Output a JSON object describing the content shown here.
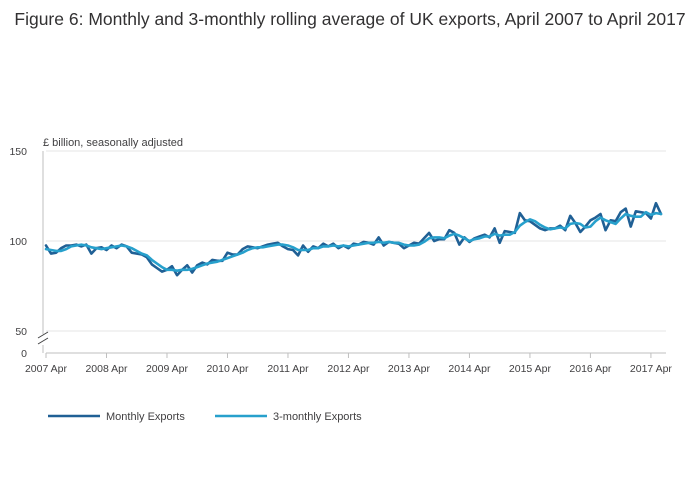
{
  "title": "Figure 6: Monthly and 3-monthly rolling average of UK exports, April 2007 to April 2017",
  "chart_data": {
    "type": "line",
    "title": "Figure 6: Monthly and 3-monthly rolling average of UK exports, April 2007 to April 2017",
    "ylabel": "£ billion, seasonally adjusted",
    "xlabel": "",
    "ylim": [
      0,
      150
    ],
    "y_axis_break": [
      0,
      50
    ],
    "yticks": [
      0,
      50,
      100,
      150
    ],
    "x_tick_labels": [
      "2007 Apr",
      "2008 Apr",
      "2009 Apr",
      "2010 Apr",
      "2011 Apr",
      "2012 Apr",
      "2013 Apr",
      "2014 Apr",
      "2015 Apr",
      "2016 Apr",
      "2017 Apr"
    ],
    "x_start": "2007 Apr",
    "x_end": "2017 Apr",
    "frequency": "monthly",
    "grid": true,
    "legend_position": "bottom-left",
    "series": [
      {
        "name": "Monthly Exports",
        "color": "#206095",
        "values": [
          97.5,
          93.0,
          93.5,
          96.0,
          97.5,
          97.5,
          98.0,
          97.0,
          98.0,
          93.0,
          96.0,
          96.5,
          95.0,
          97.5,
          96.0,
          98.0,
          97.0,
          93.5,
          93.0,
          92.5,
          91.0,
          87.0,
          85.0,
          83.0,
          84.0,
          86.0,
          81.0,
          84.0,
          86.5,
          82.5,
          86.5,
          88.0,
          87.0,
          89.5,
          89.0,
          89.0,
          93.5,
          92.5,
          92.5,
          95.5,
          97.0,
          96.5,
          96.0,
          97.0,
          98.0,
          98.5,
          99.0,
          97.0,
          95.5,
          95.0,
          92.0,
          97.5,
          94.0,
          97.0,
          96.0,
          98.5,
          97.0,
          98.5,
          96.0,
          97.5,
          96.0,
          98.5,
          98.0,
          99.5,
          99.0,
          98.0,
          102.0,
          97.5,
          99.5,
          99.0,
          98.5,
          96.0,
          97.5,
          99.0,
          98.5,
          101.5,
          104.5,
          100.0,
          101.0,
          101.0,
          106.0,
          104.5,
          98.0,
          102.0,
          99.5,
          101.5,
          102.5,
          103.5,
          102.0,
          107.0,
          99.0,
          105.5,
          105.0,
          104.5,
          115.5,
          111.5,
          111.0,
          109.0,
          107.0,
          106.0,
          107.0,
          107.0,
          108.5,
          106.0,
          114.0,
          110.0,
          105.0,
          108.0,
          111.5,
          113.0,
          115.0,
          106.0,
          111.5,
          111.0,
          116.0,
          118.0,
          108.0,
          116.5,
          116.0,
          115.5,
          112.5,
          121.0,
          115.0
        ]
      },
      {
        "name": "3-monthly Exports",
        "color": "#27a0cc",
        "values": [
          95.5,
          95.0,
          94.5,
          94.5,
          95.5,
          97.0,
          97.5,
          98.0,
          97.5,
          96.5,
          96.0,
          95.5,
          96.0,
          96.5,
          97.0,
          97.5,
          97.0,
          96.0,
          94.5,
          93.0,
          92.0,
          89.5,
          87.5,
          85.5,
          84.0,
          84.0,
          83.5,
          84.0,
          84.0,
          84.5,
          85.5,
          86.5,
          87.5,
          88.0,
          88.5,
          89.5,
          90.5,
          91.5,
          92.5,
          93.5,
          95.0,
          96.0,
          96.5,
          96.5,
          97.0,
          97.5,
          98.0,
          98.0,
          97.5,
          96.5,
          95.0,
          95.0,
          95.0,
          96.0,
          96.0,
          97.0,
          97.0,
          97.5,
          97.0,
          97.5,
          97.0,
          97.5,
          98.0,
          98.5,
          99.0,
          99.0,
          99.5,
          99.0,
          99.5,
          99.0,
          99.0,
          98.0,
          97.5,
          97.5,
          98.0,
          99.5,
          101.5,
          102.0,
          102.0,
          101.5,
          103.0,
          104.0,
          103.0,
          101.5,
          100.0,
          101.0,
          101.5,
          102.5,
          102.5,
          104.0,
          103.0,
          103.5,
          103.5,
          105.0,
          108.5,
          110.5,
          112.0,
          111.0,
          109.0,
          107.5,
          106.5,
          107.0,
          107.5,
          107.0,
          109.5,
          110.0,
          109.5,
          107.5,
          108.0,
          111.0,
          113.0,
          111.5,
          110.5,
          109.5,
          112.5,
          115.0,
          114.0,
          113.5,
          113.5,
          116.0,
          114.5,
          115.5,
          115.0
        ]
      }
    ]
  }
}
